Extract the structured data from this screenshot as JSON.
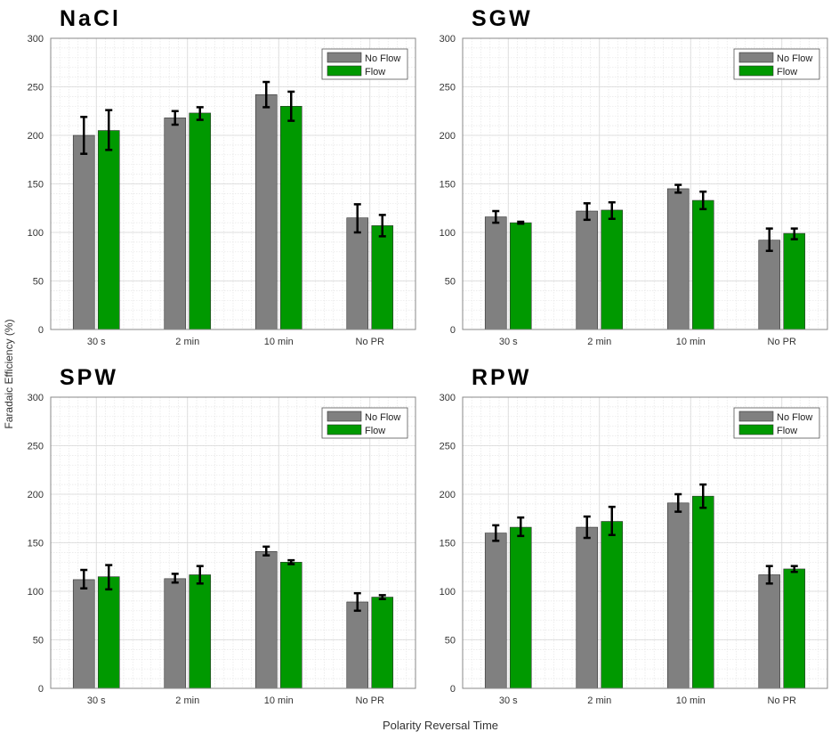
{
  "chart_data": [
    {
      "type": "bar",
      "title": "NaCl",
      "categories": [
        "30 s",
        "2 min",
        "10 min",
        "No PR"
      ],
      "ylim": [
        0,
        300
      ],
      "yticks": [
        0,
        50,
        100,
        150,
        200,
        250,
        300
      ],
      "grid": true,
      "legend": "top-right",
      "series": [
        {
          "name": "No Flow",
          "color": "#808080",
          "values": [
            200,
            218,
            242,
            115
          ],
          "err_low": [
            181,
            211,
            229,
            100
          ],
          "err_high": [
            219,
            225,
            255,
            129
          ]
        },
        {
          "name": "Flow",
          "color": "#009900",
          "values": [
            205,
            223,
            230,
            107
          ],
          "err_low": [
            185,
            216,
            215,
            96
          ],
          "err_high": [
            226,
            229,
            245,
            118
          ]
        }
      ]
    },
    {
      "type": "bar",
      "title": "SGW",
      "categories": [
        "30 s",
        "2 min",
        "10 min",
        "No PR"
      ],
      "ylim": [
        0,
        300
      ],
      "yticks": [
        0,
        50,
        100,
        150,
        200,
        250,
        300
      ],
      "grid": true,
      "legend": "top-right",
      "series": [
        {
          "name": "No Flow",
          "color": "#808080",
          "values": [
            116,
            122,
            145,
            92
          ],
          "err_low": [
            110,
            113,
            141,
            81
          ],
          "err_high": [
            122,
            130,
            149,
            104
          ]
        },
        {
          "name": "Flow",
          "color": "#009900",
          "values": [
            110,
            123,
            133,
            99
          ],
          "err_low": [
            109,
            114,
            124,
            93
          ],
          "err_high": [
            111,
            131,
            142,
            104
          ]
        }
      ]
    },
    {
      "type": "bar",
      "title": "SPW",
      "categories": [
        "30 s",
        "2 min",
        "10 min",
        "No PR"
      ],
      "ylim": [
        0,
        300
      ],
      "yticks": [
        0,
        50,
        100,
        150,
        200,
        250,
        300
      ],
      "grid": true,
      "legend": "top-right",
      "series": [
        {
          "name": "No Flow",
          "color": "#808080",
          "values": [
            112,
            113,
            141,
            89
          ],
          "err_low": [
            103,
            109,
            137,
            80
          ],
          "err_high": [
            122,
            118,
            146,
            98
          ]
        },
        {
          "name": "Flow",
          "color": "#009900",
          "values": [
            115,
            117,
            130,
            94
          ],
          "err_low": [
            102,
            108,
            128,
            92
          ],
          "err_high": [
            127,
            126,
            132,
            96
          ]
        }
      ]
    },
    {
      "type": "bar",
      "title": "RPW",
      "categories": [
        "30 s",
        "2 min",
        "10 min",
        "No PR"
      ],
      "ylim": [
        0,
        300
      ],
      "yticks": [
        0,
        50,
        100,
        150,
        200,
        250,
        300
      ],
      "grid": true,
      "legend": "top-right",
      "series": [
        {
          "name": "No Flow",
          "color": "#808080",
          "values": [
            160,
            166,
            191,
            117
          ],
          "err_low": [
            152,
            155,
            182,
            108
          ],
          "err_high": [
            168,
            177,
            200,
            126
          ]
        },
        {
          "name": "Flow",
          "color": "#009900",
          "values": [
            166,
            172,
            198,
            123
          ],
          "err_low": [
            157,
            158,
            186,
            120
          ],
          "err_high": [
            176,
            187,
            210,
            126
          ]
        }
      ]
    }
  ],
  "ylabel": "Faradaic Efficiency (%)",
  "xlabel": "Polarity Reversal Time"
}
